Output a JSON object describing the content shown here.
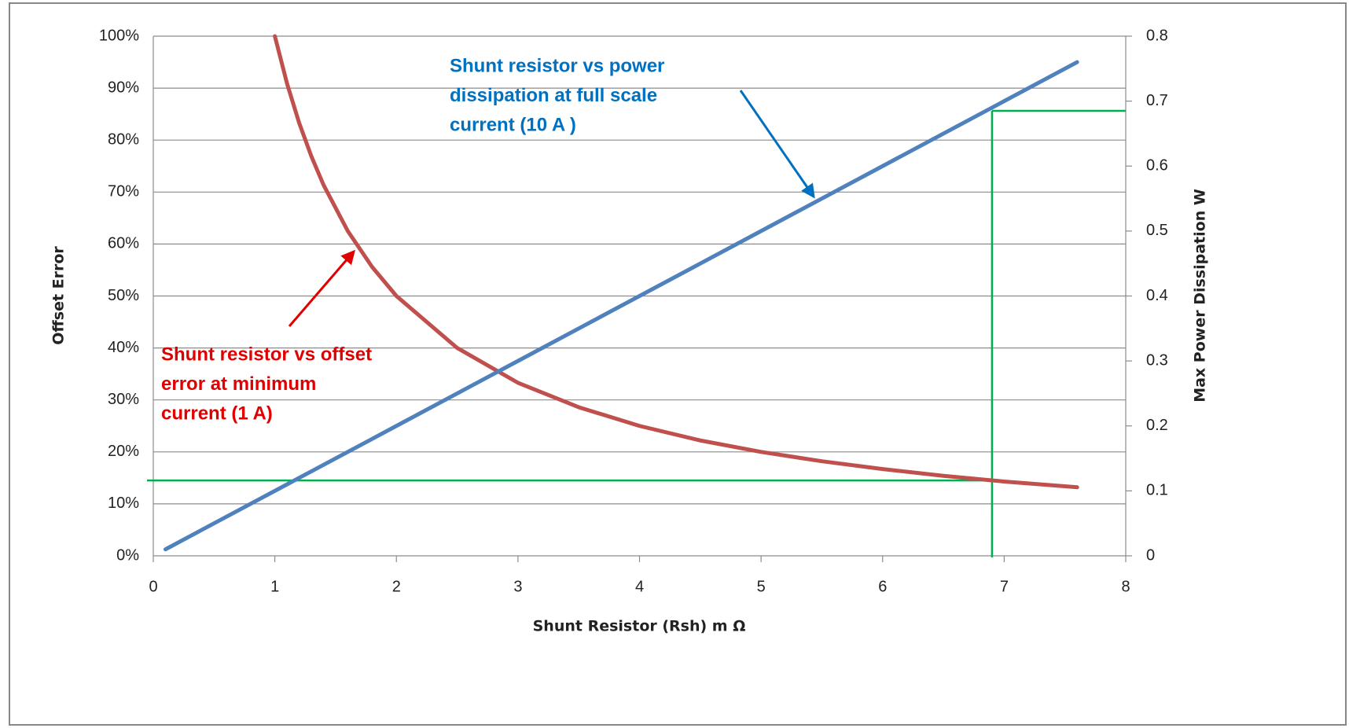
{
  "chart_data": {
    "type": "line",
    "xlabel": "Shunt Resistor (Rsh) m Ω",
    "ylabel": "Offset Error",
    "y2label": "Max Power Dissipation W",
    "x": [
      0.1,
      1,
      1.1,
      1.2,
      1.3,
      1.4,
      1.6,
      1.8,
      2,
      2.5,
      3,
      3.5,
      4,
      4.5,
      5,
      5.5,
      6,
      6.5,
      7,
      7.6
    ],
    "series": [
      {
        "color": "#c0504d",
        "values": [
          null,
          100,
          90.9,
          83.3,
          76.9,
          71.4,
          62.5,
          55.6,
          50,
          40,
          33.3,
          28.6,
          25,
          22.2,
          20,
          18.2,
          16.7,
          15.4,
          14.3,
          13.2
        ]
      },
      {
        "color": "#4f81bd",
        "axis": "y2",
        "values": [
          0.01,
          0.1,
          0.11,
          0.12,
          0.13,
          0.14,
          0.16,
          0.18,
          0.2,
          0.25,
          0.3,
          0.35,
          0.4,
          0.45,
          0.5,
          0.55,
          0.6,
          0.65,
          0.7,
          0.76
        ]
      }
    ],
    "xlim": [
      0,
      8
    ],
    "xticks": [
      0,
      1,
      2,
      3,
      4,
      5,
      6,
      7,
      8
    ],
    "ylim": [
      0,
      100
    ],
    "yticks": [
      {
        "value": 0,
        "label": "0%"
      },
      {
        "value": 10,
        "label": "10%"
      },
      {
        "value": 20,
        "label": "20%"
      },
      {
        "value": 30,
        "label": "30%"
      },
      {
        "value": 40,
        "label": "40%"
      },
      {
        "value": 50,
        "label": "50%"
      },
      {
        "value": 60,
        "label": "60%"
      },
      {
        "value": 70,
        "label": "70%"
      },
      {
        "value": 80,
        "label": "80%"
      },
      {
        "value": 90,
        "label": "90%"
      },
      {
        "value": 100,
        "label": "100%"
      }
    ],
    "y2lim": [
      0,
      0.8
    ],
    "y2ticks": [
      0,
      0.1,
      0.2,
      0.3,
      0.4,
      0.5,
      0.6,
      0.7,
      0.8
    ],
    "grid": true,
    "guides": {
      "x": 6.9,
      "y": 14.5,
      "y2": 0.685,
      "color": "#00b050"
    },
    "annotations": [
      {
        "text": [
          "Shunt resistor vs power",
          "dissipation at  full scale",
          "current (10 A )"
        ],
        "color": "#0070c0"
      },
      {
        "text": [
          "Shunt resistor vs offset",
          "error at  minimum",
          "current (1 A)"
        ],
        "color": "#e00000"
      }
    ]
  }
}
